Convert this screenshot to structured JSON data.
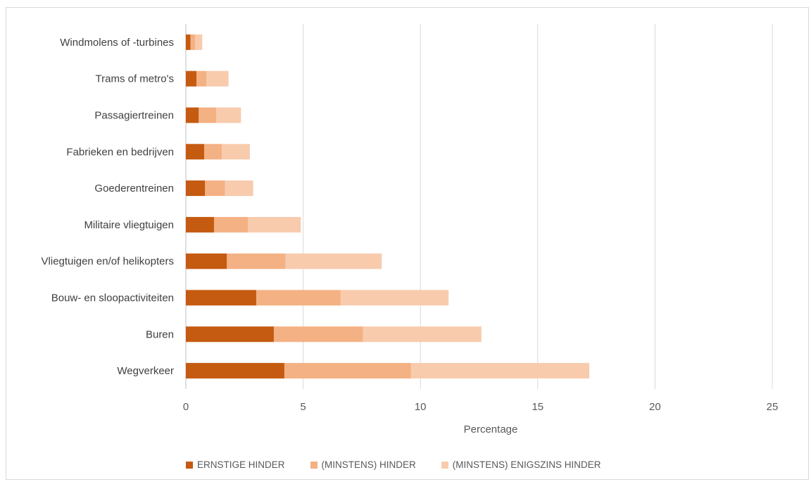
{
  "chart_data": {
    "type": "bar",
    "orientation": "horizontal",
    "stacked": true,
    "categories": [
      "Windmolens of -turbines",
      "Trams of metro's",
      "Passagiertreinen",
      "Fabrieken en bedrijven",
      "Goederentreinen",
      "Militaire vliegtuigen",
      "Vliegtuigen en/of helikopters",
      "Bouw- en sloopactiviteiten",
      "Buren",
      "Wegverkeer"
    ],
    "series": [
      {
        "name": "ERNSTIGE HINDER",
        "color": "#c55a11",
        "values": [
          0.2,
          0.45,
          0.55,
          0.78,
          0.82,
          1.2,
          1.75,
          3.0,
          3.75,
          4.2
        ]
      },
      {
        "name": "(MINSTENS) HINDER",
        "color": "#f4b183",
        "values": [
          0.2,
          0.42,
          0.75,
          0.75,
          0.85,
          1.45,
          2.5,
          3.6,
          3.8,
          5.4
        ]
      },
      {
        "name": "(MINSTENS) ENIGSZINS HINDER",
        "color": "#f8cbad",
        "values": [
          0.3,
          0.95,
          1.05,
          1.2,
          1.2,
          2.25,
          4.1,
          4.6,
          5.05,
          7.6
        ]
      }
    ],
    "xlabel": "Percentage",
    "xlim": [
      0,
      25
    ],
    "xticks": [
      "0",
      "5",
      "10",
      "15",
      "20",
      "25"
    ],
    "grid": "vertical",
    "legend": "bottom"
  }
}
